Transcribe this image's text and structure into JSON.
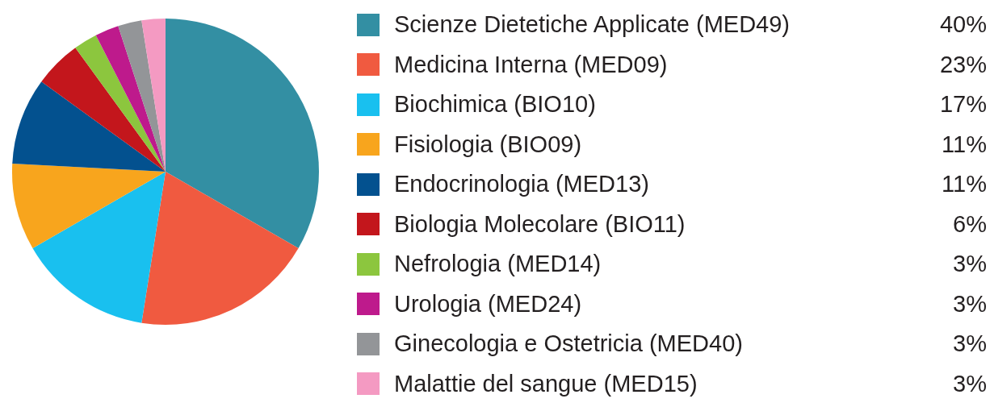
{
  "chart_data": {
    "type": "pie",
    "categories": [
      "Scienze Dietetiche Applicate (MED49)",
      "Medicina Interna (MED09)",
      "Biochimica (BIO10)",
      "Fisiologia (BIO09)",
      "Endocrinologia (MED13)",
      "Biologia Molecolare (BIO11)",
      "Nefrologia (MED14)",
      "Urologia (MED24)",
      "Ginecologia e Ostetricia (MED40)",
      "Malattie del sangue (MED15)"
    ],
    "values": [
      40,
      23,
      17,
      11,
      11,
      6,
      3,
      3,
      3,
      3
    ],
    "value_labels": [
      "40%",
      "23%",
      "17%",
      "11%",
      "11%",
      "6%",
      "3%",
      "3%",
      "3%",
      "3%"
    ],
    "colors": [
      "#338fa3",
      "#f05a40",
      "#19c0ef",
      "#f8a51d",
      "#03518f",
      "#c3161c",
      "#8cc63e",
      "#be1a8c",
      "#939598",
      "#f49ac2"
    ],
    "legend": "right"
  }
}
